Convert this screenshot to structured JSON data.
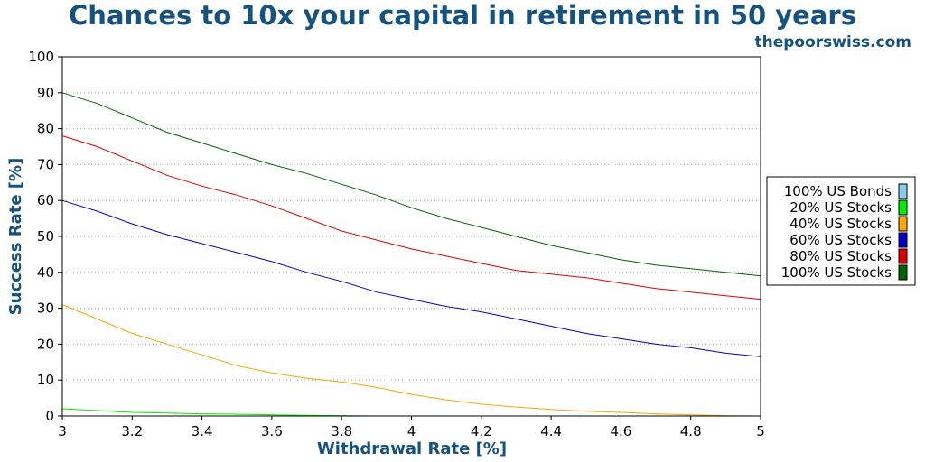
{
  "chart_data": {
    "type": "line",
    "title": "Chances to 10x your capital in retirement in 50 years",
    "subtitle": "thepoorswiss.com",
    "xlabel": "Withdrawal Rate [%]",
    "ylabel": "Success Rate [%]",
    "xlim": [
      3,
      5
    ],
    "ylim": [
      0,
      100
    ],
    "xticks": [
      "3",
      "3.2",
      "3.4",
      "3.6",
      "3.8",
      "4",
      "4.2",
      "4.4",
      "4.6",
      "4.8",
      "5"
    ],
    "yticks": [
      "0",
      "10",
      "20",
      "30",
      "40",
      "50",
      "60",
      "70",
      "80",
      "90",
      "100"
    ],
    "grid": "horizontal dotted",
    "legend_position": "right",
    "x": [
      3.0,
      3.1,
      3.2,
      3.3,
      3.4,
      3.5,
      3.6,
      3.7,
      3.8,
      3.9,
      4.0,
      4.1,
      4.2,
      4.3,
      4.4,
      4.5,
      4.6,
      4.7,
      4.8,
      4.9,
      5.0
    ],
    "series": [
      {
        "name": "100% US Bonds",
        "color": "#87ceeb",
        "values": [
          0,
          0,
          0,
          0,
          0,
          0,
          0,
          0,
          0,
          0,
          0,
          0,
          0,
          0,
          0,
          0,
          0,
          0,
          0,
          0,
          0
        ]
      },
      {
        "name": "20% US Stocks",
        "color": "#00ee00",
        "values": [
          2,
          1.5,
          1,
          0.8,
          0.6,
          0.5,
          0.3,
          0.2,
          0.1,
          0,
          0,
          0,
          0,
          0,
          0,
          0,
          0,
          0,
          0,
          0,
          0
        ]
      },
      {
        "name": "40% US Stocks",
        "color": "#ffa500",
        "values": [
          31,
          27,
          23,
          20,
          17,
          14,
          12,
          10.5,
          9.5,
          8,
          6,
          4.5,
          3.3,
          2.5,
          1.8,
          1.3,
          1,
          0.6,
          0.3,
          0.1,
          0
        ]
      },
      {
        "name": "60% US Stocks",
        "color": "#0000cd",
        "values": [
          60,
          57,
          53.5,
          50.5,
          48,
          45.5,
          43,
          40,
          37.5,
          34.5,
          32.5,
          30.5,
          29,
          27,
          25,
          23,
          21.5,
          20,
          19,
          17.5,
          16.5
        ]
      },
      {
        "name": "80% US Stocks",
        "color": "#dd0000",
        "values": [
          78,
          75,
          71,
          67,
          64,
          61.5,
          58.5,
          55,
          51.5,
          49,
          46.5,
          44.5,
          42.5,
          40.5,
          39.5,
          38.5,
          37,
          35.5,
          34.5,
          33.5,
          32.5
        ]
      },
      {
        "name": "100% US Stocks",
        "color": "#006400",
        "values": [
          90,
          87,
          83,
          79,
          76,
          73,
          70,
          67.5,
          64.5,
          61.5,
          58,
          55,
          52.5,
          50,
          47.5,
          45.5,
          43.5,
          42,
          41,
          40,
          39
        ]
      }
    ]
  }
}
